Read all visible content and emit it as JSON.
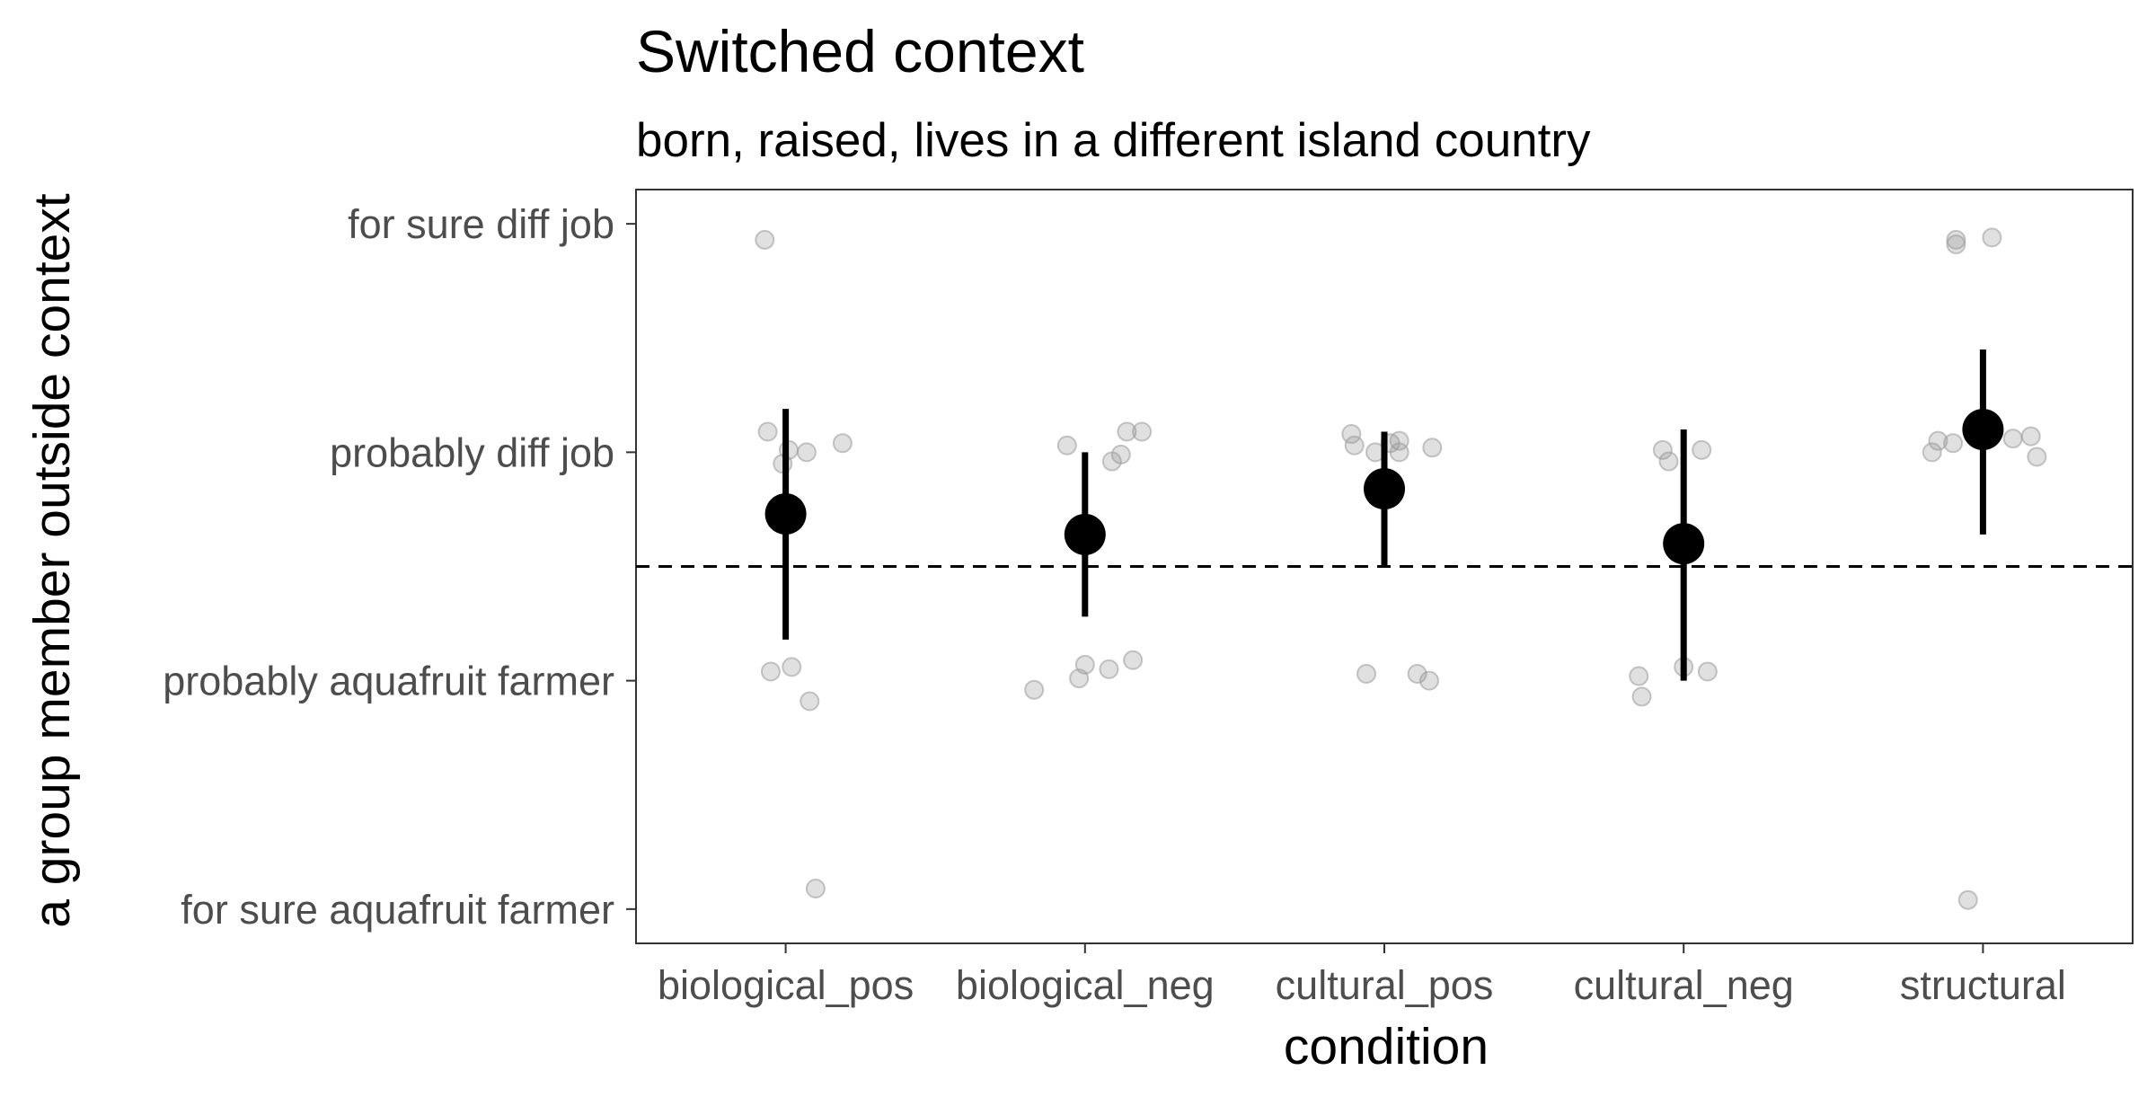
{
  "chart_data": {
    "type": "scatter",
    "title": "Switched context",
    "subtitle": "born, raised, lives in a different island country",
    "xlabel": "condition",
    "ylabel": "a group member outside context",
    "categories": [
      "biological_pos",
      "biological_neg",
      "cultural_pos",
      "cultural_neg",
      "structural"
    ],
    "y_levels": [
      "for sure aquafruit farmer",
      "probably aquafruit farmer",
      "probably diff job",
      "for sure diff job"
    ],
    "y_values_of_levels": [
      1,
      2,
      3,
      4
    ],
    "ylim": [
      0.85,
      4.15
    ],
    "reference_line": {
      "y": 2.5,
      "style": "dashed"
    },
    "grid": false,
    "summary": [
      {
        "category": "biological_pos",
        "mean": 2.73,
        "lower": 2.18,
        "upper": 3.19
      },
      {
        "category": "biological_neg",
        "mean": 2.64,
        "lower": 2.28,
        "upper": 3.0
      },
      {
        "category": "cultural_pos",
        "mean": 2.84,
        "lower": 2.5,
        "upper": 3.09
      },
      {
        "category": "cultural_neg",
        "mean": 2.6,
        "lower": 2.0,
        "upper": 3.1
      },
      {
        "category": "structural",
        "mean": 3.1,
        "lower": 2.64,
        "upper": 3.45
      }
    ],
    "points": [
      {
        "category": "biological_pos",
        "jitter": -0.07,
        "y": 3.93
      },
      {
        "category": "biological_pos",
        "jitter": -0.06,
        "y": 3.09
      },
      {
        "category": "biological_pos",
        "jitter": 0.01,
        "y": 3.01
      },
      {
        "category": "biological_pos",
        "jitter": 0.07,
        "y": 3.0
      },
      {
        "category": "biological_pos",
        "jitter": 0.19,
        "y": 3.04
      },
      {
        "category": "biological_pos",
        "jitter": -0.01,
        "y": 2.95
      },
      {
        "category": "biological_pos",
        "jitter": -0.05,
        "y": 2.04
      },
      {
        "category": "biological_pos",
        "jitter": 0.02,
        "y": 2.06
      },
      {
        "category": "biological_pos",
        "jitter": 0.08,
        "y": 1.91
      },
      {
        "category": "biological_pos",
        "jitter": 0.1,
        "y": 1.09
      },
      {
        "category": "biological_neg",
        "jitter": -0.06,
        "y": 3.03
      },
      {
        "category": "biological_neg",
        "jitter": 0.09,
        "y": 2.96
      },
      {
        "category": "biological_neg",
        "jitter": 0.12,
        "y": 2.99
      },
      {
        "category": "biological_neg",
        "jitter": 0.14,
        "y": 3.09
      },
      {
        "category": "biological_neg",
        "jitter": 0.19,
        "y": 3.09
      },
      {
        "category": "biological_neg",
        "jitter": -0.17,
        "y": 1.96
      },
      {
        "category": "biological_neg",
        "jitter": -0.02,
        "y": 2.01
      },
      {
        "category": "biological_neg",
        "jitter": 0.0,
        "y": 2.07
      },
      {
        "category": "biological_neg",
        "jitter": 0.08,
        "y": 2.05
      },
      {
        "category": "biological_neg",
        "jitter": 0.16,
        "y": 2.09
      },
      {
        "category": "cultural_pos",
        "jitter": -0.11,
        "y": 3.08
      },
      {
        "category": "cultural_pos",
        "jitter": -0.1,
        "y": 3.03
      },
      {
        "category": "cultural_pos",
        "jitter": -0.03,
        "y": 3.0
      },
      {
        "category": "cultural_pos",
        "jitter": 0.02,
        "y": 3.04
      },
      {
        "category": "cultural_pos",
        "jitter": 0.05,
        "y": 3.05
      },
      {
        "category": "cultural_pos",
        "jitter": 0.05,
        "y": 3.0
      },
      {
        "category": "cultural_pos",
        "jitter": 0.16,
        "y": 3.02
      },
      {
        "category": "cultural_pos",
        "jitter": -0.06,
        "y": 2.03
      },
      {
        "category": "cultural_pos",
        "jitter": 0.11,
        "y": 2.03
      },
      {
        "category": "cultural_pos",
        "jitter": 0.15,
        "y": 2.0
      },
      {
        "category": "cultural_neg",
        "jitter": -0.07,
        "y": 3.01
      },
      {
        "category": "cultural_neg",
        "jitter": -0.05,
        "y": 2.96
      },
      {
        "category": "cultural_neg",
        "jitter": 0.06,
        "y": 3.01
      },
      {
        "category": "cultural_neg",
        "jitter": -0.15,
        "y": 2.02
      },
      {
        "category": "cultural_neg",
        "jitter": -0.14,
        "y": 1.93
      },
      {
        "category": "cultural_neg",
        "jitter": 0.0,
        "y": 2.06
      },
      {
        "category": "cultural_neg",
        "jitter": 0.08,
        "y": 2.04
      },
      {
        "category": "structural",
        "jitter": -0.09,
        "y": 3.93
      },
      {
        "category": "structural",
        "jitter": -0.09,
        "y": 3.91
      },
      {
        "category": "structural",
        "jitter": 0.03,
        "y": 3.94
      },
      {
        "category": "structural",
        "jitter": -0.17,
        "y": 3.0
      },
      {
        "category": "structural",
        "jitter": -0.15,
        "y": 3.05
      },
      {
        "category": "structural",
        "jitter": -0.1,
        "y": 3.04
      },
      {
        "category": "structural",
        "jitter": 0.1,
        "y": 3.06
      },
      {
        "category": "structural",
        "jitter": 0.16,
        "y": 3.07
      },
      {
        "category": "structural",
        "jitter": 0.18,
        "y": 2.98
      },
      {
        "category": "structural",
        "jitter": -0.05,
        "y": 1.04
      }
    ],
    "colors": {
      "summary": "#000000",
      "points": "#999999",
      "tick_label": "#4d4d4d",
      "frame": "#333333"
    }
  }
}
